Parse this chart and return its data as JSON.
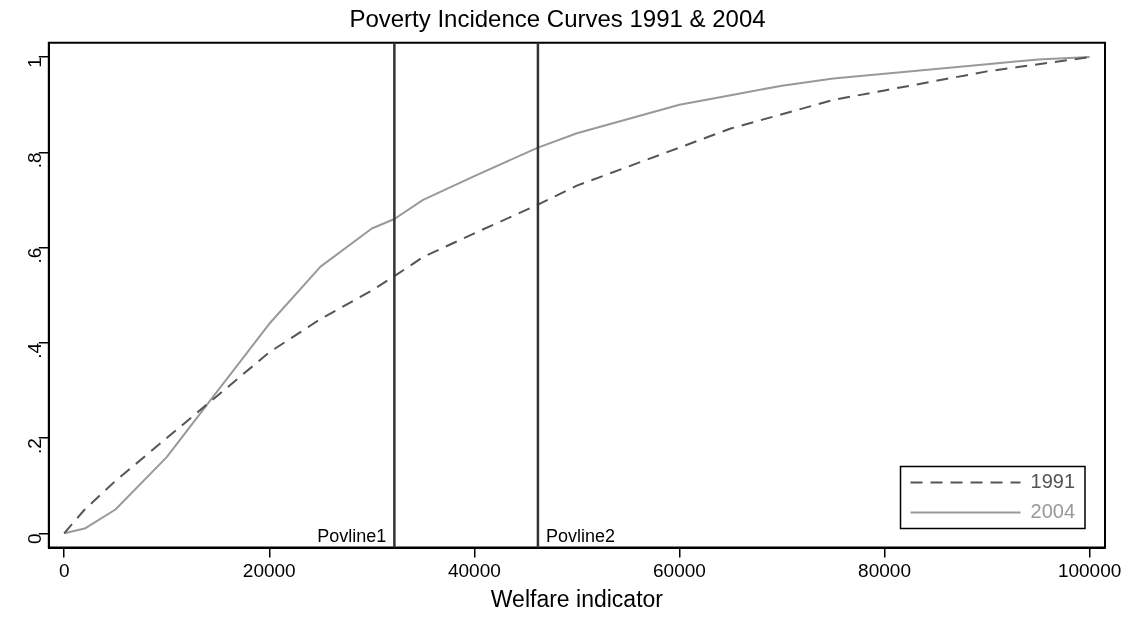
{
  "chart_data": {
    "type": "line",
    "title": "Poverty Incidence Curves 1991 & 2004",
    "xlabel": "Welfare indicator",
    "x": [
      0,
      2000,
      5000,
      10000,
      15000,
      20000,
      25000,
      30000,
      32200,
      35000,
      40000,
      46200,
      50000,
      55000,
      60000,
      65000,
      70000,
      75000,
      80000,
      85000,
      90000,
      95000,
      100000
    ],
    "series": [
      {
        "name": "1991",
        "color": "#555555",
        "line_style": "dashed",
        "values": [
          0,
          0.05,
          0.11,
          0.2,
          0.29,
          0.38,
          0.45,
          0.51,
          0.54,
          0.58,
          0.63,
          0.69,
          0.73,
          0.77,
          0.81,
          0.85,
          0.88,
          0.91,
          0.93,
          0.95,
          0.97,
          0.985,
          1
        ]
      },
      {
        "name": "2004",
        "color": "#999999",
        "line_style": "solid",
        "values": [
          0,
          0.01,
          0.05,
          0.16,
          0.3,
          0.44,
          0.56,
          0.64,
          0.66,
          0.7,
          0.75,
          0.81,
          0.84,
          0.87,
          0.9,
          0.92,
          0.94,
          0.955,
          0.965,
          0.975,
          0.985,
          0.995,
          1
        ]
      }
    ],
    "xlim": [
      -1500,
      101500
    ],
    "xticks": [
      0,
      20000,
      40000,
      60000,
      80000,
      100000
    ],
    "ylim": [
      -0.03,
      1.03
    ],
    "yticks": [
      0,
      {
        "value": 0.2,
        "label": ".2"
      },
      {
        "value": 0.4,
        "label": ".4"
      },
      {
        "value": 0.6,
        "label": ".6"
      },
      {
        "value": 0.8,
        "label": ".8"
      },
      1
    ],
    "ref_lines": [
      {
        "axis": "x",
        "value": 32200,
        "label": "Povline1",
        "color": "#333333"
      },
      {
        "axis": "x",
        "value": 46200,
        "label": "Povline2",
        "color": "#333333"
      }
    ],
    "legend": "bottom right",
    "grid": false,
    "marker": "none"
  }
}
